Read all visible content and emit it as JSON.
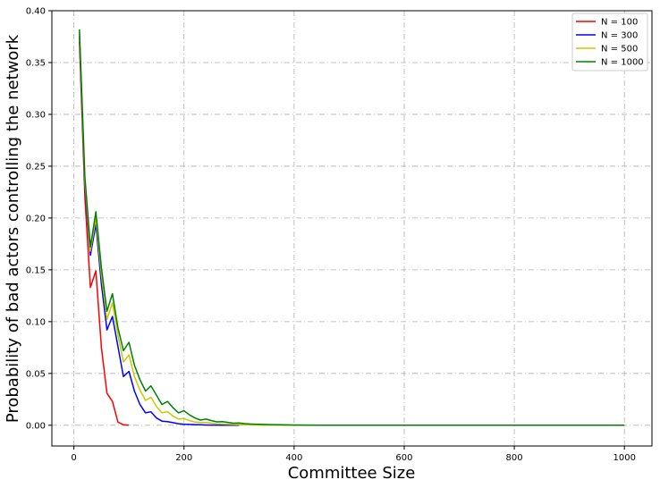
{
  "chart_data": {
    "type": "line",
    "title": "",
    "xlabel": "Committee Size",
    "ylabel": "Probability of bad actors controlling the network",
    "xlim": [
      -40,
      1050
    ],
    "ylim": [
      -0.02,
      0.4
    ],
    "xticks": [
      0,
      200,
      400,
      600,
      800,
      1000
    ],
    "xtick_labels": [
      "0",
      "200",
      "400",
      "600",
      "800",
      "1000"
    ],
    "yticks": [
      0.0,
      0.05,
      0.1,
      0.15,
      0.2,
      0.25,
      0.3,
      0.35,
      0.4
    ],
    "ytick_labels": [
      "0.00",
      "0.05",
      "0.10",
      "0.15",
      "0.20",
      "0.25",
      "0.30",
      "0.35",
      "0.40"
    ],
    "grid": true,
    "legend_position": "top-right",
    "series": [
      {
        "name": "N = 100",
        "color": "#ff0000",
        "x": [
          10,
          20,
          30,
          40,
          50,
          60,
          70,
          80,
          90,
          100
        ],
        "y": [
          0.37,
          0.22,
          0.133,
          0.149,
          0.075,
          0.031,
          0.023,
          0.003,
          0.0005,
          0.0
        ]
      },
      {
        "name": "N = 300",
        "color": "#0000ff",
        "x": [
          10,
          20,
          30,
          40,
          50,
          60,
          70,
          80,
          90,
          100,
          110,
          120,
          130,
          140,
          150,
          160,
          170,
          180,
          190,
          200,
          210,
          220,
          230,
          240,
          250,
          260,
          270,
          280,
          290,
          300
        ],
        "y": [
          0.376,
          0.23,
          0.164,
          0.194,
          0.136,
          0.092,
          0.105,
          0.076,
          0.047,
          0.052,
          0.033,
          0.02,
          0.012,
          0.013,
          0.007,
          0.004,
          0.0035,
          0.0025,
          0.0015,
          0.001,
          0.0008,
          0.0006,
          0.0004,
          0.0003,
          0.0002,
          0.00015,
          0.0001,
          5e-05,
          2e-05,
          0.0
        ]
      },
      {
        "name": "N = 500",
        "color": "#c8c800",
        "x": [
          10,
          20,
          30,
          40,
          50,
          60,
          70,
          80,
          90,
          100,
          110,
          120,
          130,
          140,
          150,
          160,
          170,
          180,
          190,
          200,
          210,
          220,
          230,
          240,
          250,
          260,
          270,
          280,
          290,
          300,
          310,
          320,
          330,
          340,
          350,
          400,
          450,
          500
        ],
        "y": [
          0.379,
          0.235,
          0.168,
          0.2,
          0.145,
          0.102,
          0.118,
          0.087,
          0.061,
          0.068,
          0.047,
          0.034,
          0.024,
          0.027,
          0.018,
          0.012,
          0.013,
          0.009,
          0.006,
          0.0065,
          0.0045,
          0.003,
          0.0025,
          0.0028,
          0.002,
          0.0015,
          0.0012,
          0.001,
          0.0008,
          0.0007,
          0.0005,
          0.0004,
          0.0003,
          0.0002,
          0.00015,
          5e-05,
          2e-05,
          0.0
        ]
      },
      {
        "name": "N = 1000",
        "color": "#008000",
        "x": [
          10,
          20,
          30,
          40,
          50,
          60,
          70,
          80,
          90,
          100,
          110,
          120,
          130,
          140,
          150,
          160,
          170,
          180,
          190,
          200,
          210,
          220,
          230,
          240,
          250,
          260,
          270,
          280,
          290,
          300,
          310,
          320,
          330,
          340,
          350,
          400,
          450,
          500,
          600,
          700,
          800,
          900,
          1000
        ],
        "y": [
          0.382,
          0.24,
          0.172,
          0.206,
          0.152,
          0.11,
          0.127,
          0.094,
          0.072,
          0.08,
          0.058,
          0.044,
          0.033,
          0.038,
          0.029,
          0.02,
          0.023,
          0.017,
          0.012,
          0.014,
          0.01,
          0.007,
          0.005,
          0.006,
          0.0045,
          0.0033,
          0.0035,
          0.0028,
          0.002,
          0.0022,
          0.0016,
          0.0012,
          0.001,
          0.0009,
          0.0007,
          0.0003,
          0.0001,
          5e-05,
          0.0,
          0.0,
          0.0,
          0.0,
          0.0
        ]
      }
    ]
  }
}
